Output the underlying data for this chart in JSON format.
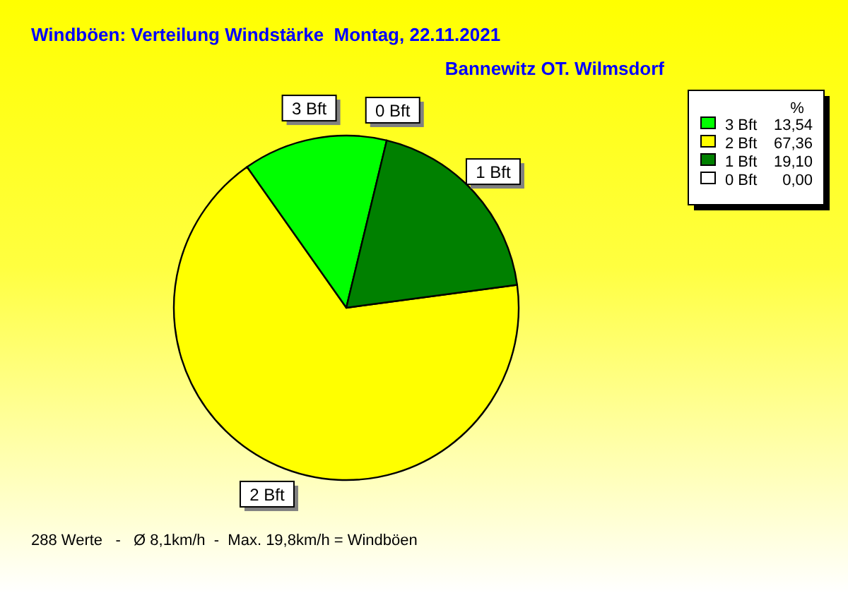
{
  "chart_data": {
    "type": "pie",
    "title": "Windböen: Verteilung Windstärke  Montag, 22.11.2021",
    "subtitle": "Bannewitz OT. Wilmsdorf",
    "categories": [
      "3 Bft",
      "2 Bft",
      "1 Bft",
      "0 Bft"
    ],
    "values": [
      13.54,
      67.36,
      19.1,
      0.0
    ],
    "colors": [
      "#00ff00",
      "#ffff00",
      "#008000",
      "#ffffff"
    ],
    "value_labels": [
      "13,54",
      "67,36",
      "19,10",
      "0,00"
    ],
    "legend": "top right",
    "legend_title": "%",
    "annotations": [
      "288 Werte   -   Ø 8,1km/h  -  Max. 19,8km/h = Windböen"
    ]
  }
}
